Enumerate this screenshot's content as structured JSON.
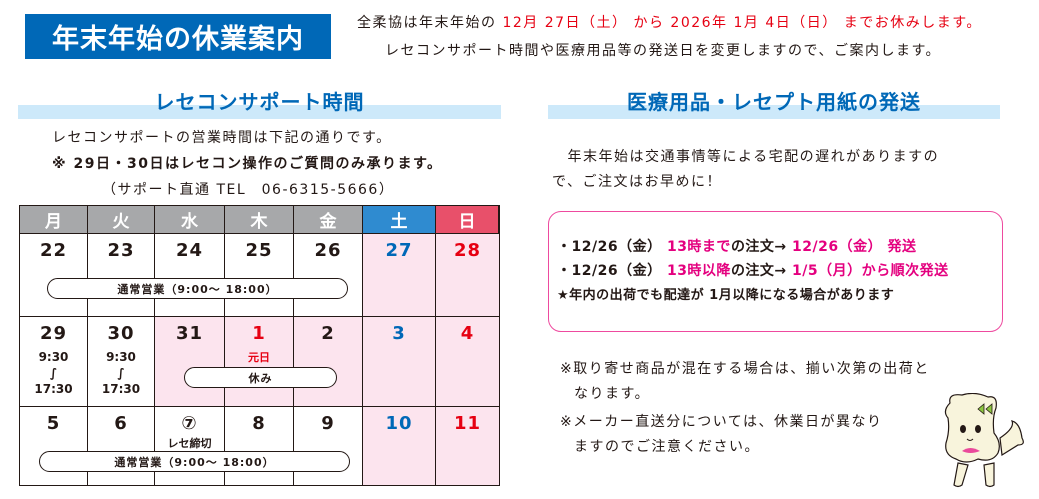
{
  "header": {
    "title": "年末年始の休業案内",
    "line1": [
      {
        "t": "全柔協は年末年始の ",
        "c": ""
      },
      {
        "t": "12月 27日（土） から 2026年 1月 4日（日） までお休みします。",
        "c": "red"
      }
    ],
    "line2": "レセコンサポート時間や医療用品等の発送日を変更しますので、ご案内します。"
  },
  "support": {
    "title": "レセコンサポート時間",
    "line1": "レセコンサポートの営業時間は下記の通りです。",
    "line2": "※ 29日・30日はレセコン操作のご質問のみ承ります。",
    "line3": "（サポート直通 TEL　06-6315-5666）"
  },
  "calendar": {
    "weekdays": [
      "月",
      "火",
      "水",
      "木",
      "金",
      "土",
      "日"
    ],
    "weekday_colors": [
      "#a7a8aa",
      "#a7a8aa",
      "#a7a8aa",
      "#a7a8aa",
      "#a7a8aa",
      "#2f8bd0",
      "#e8506a"
    ],
    "weeks": [
      [
        {
          "d": "22"
        },
        {
          "d": "23"
        },
        {
          "d": "24"
        },
        {
          "d": "25"
        },
        {
          "d": "26"
        },
        {
          "d": "27",
          "color": "blue",
          "pink": true
        },
        {
          "d": "28",
          "color": "red",
          "pink": true
        }
      ],
      [
        {
          "d": "29",
          "sub": [
            "9:30",
            "∫",
            "17:30"
          ]
        },
        {
          "d": "30",
          "sub": [
            "9:30",
            "∫",
            "17:30"
          ]
        },
        {
          "d": "31",
          "pink": true
        },
        {
          "d": "1",
          "color": "red",
          "pink": true,
          "note": "元日"
        },
        {
          "d": "2",
          "pink": true
        },
        {
          "d": "3",
          "color": "blue",
          "pink": true
        },
        {
          "d": "4",
          "color": "red",
          "pink": true
        }
      ],
      [
        {
          "d": "5"
        },
        {
          "d": "6"
        },
        {
          "d": "⑦",
          "note": "レセ締切"
        },
        {
          "d": "8"
        },
        {
          "d": "9"
        },
        {
          "d": "10",
          "color": "blue",
          "pink": true
        },
        {
          "d": "11",
          "color": "red",
          "pink": true
        }
      ]
    ],
    "pill_week1": "通常営業（9:00～ 18:00）",
    "pill_week2": "休み",
    "pill_week3": "通常営業（9:00～ 18:00）",
    "colors": {
      "blue": "#0068b7",
      "red": "#e60012",
      "pink": "#fce4ee"
    }
  },
  "shipping": {
    "title": "医療用品・レセプト用紙の発送",
    "intro1": "　年末年始は交通事情等による宅配の遅れがありますの",
    "intro2": "で、ご注文はお早めに！",
    "rows": [
      [
        {
          "t": "・12/26（金） ",
          "c": ""
        },
        {
          "t": "13時まで",
          "c": "mag"
        },
        {
          "t": "の注文→ ",
          "c": ""
        },
        {
          "t": "12/26（金） 発送",
          "c": "mag"
        }
      ],
      [
        {
          "t": "・12/26（金） ",
          "c": ""
        },
        {
          "t": "13時以降",
          "c": "mag"
        },
        {
          "t": "の注文→ ",
          "c": ""
        },
        {
          "t": "1/5（月）から順次発送",
          "c": "mag"
        }
      ],
      [
        {
          "t": "★年内の出荷でも配達が 1月以降になる場合があります",
          "c": ""
        }
      ]
    ],
    "note1a": "※取り寄せ商品が混在する場合は、揃い次第の出荷と",
    "note1b": "なります。",
    "note2a": "※メーカー直送分については、休業日が異なり",
    "note2b": "ますのでご注意ください。"
  },
  "mascot": {
    "icon": "dog-mascot-icon"
  }
}
